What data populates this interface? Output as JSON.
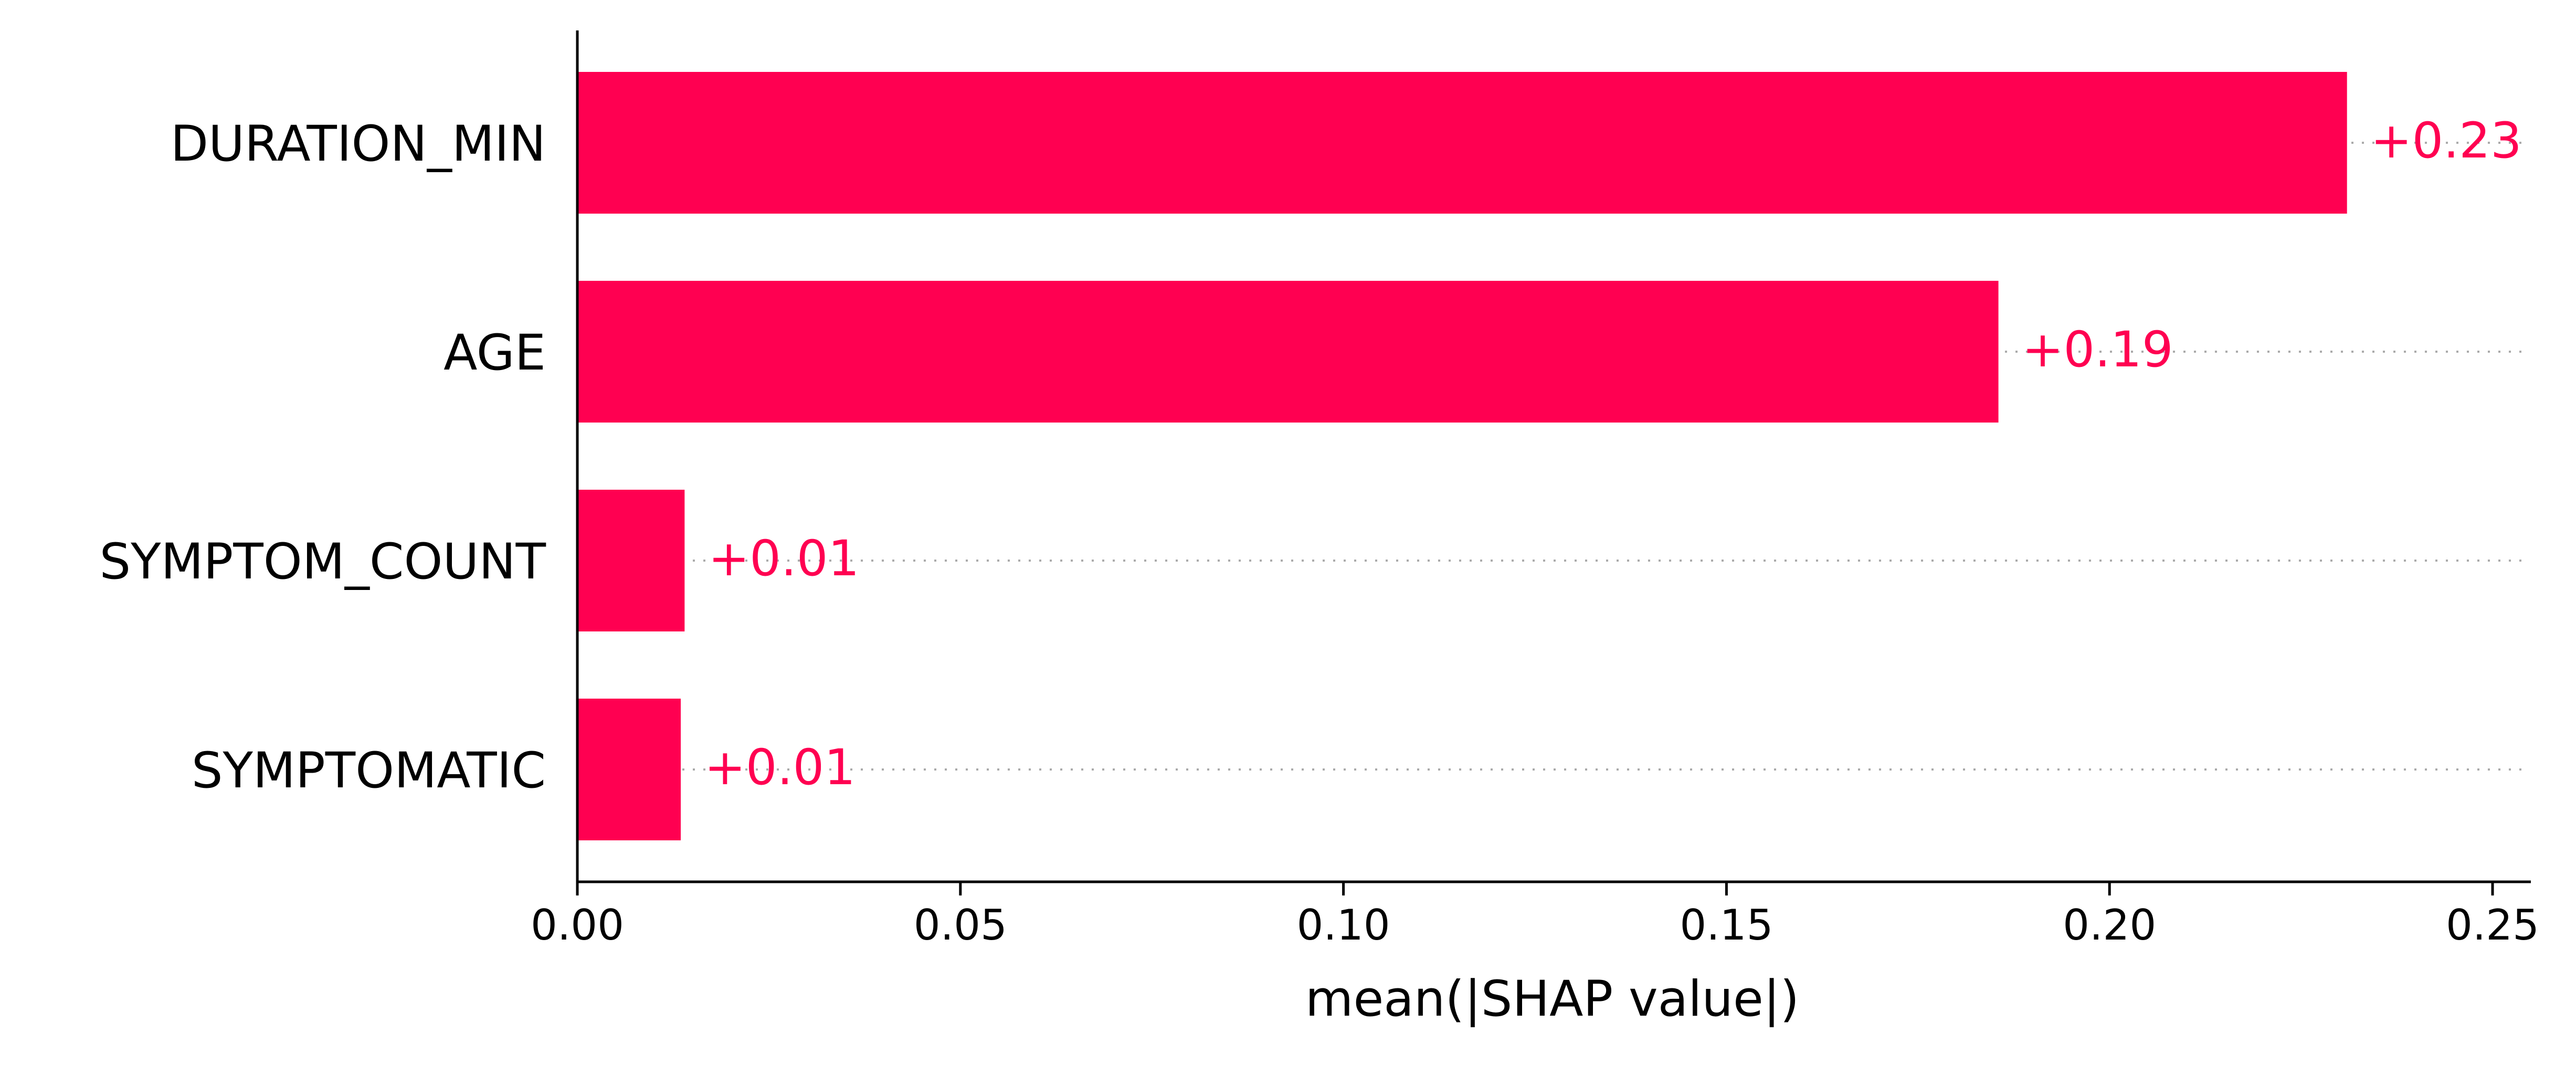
{
  "chart_data": {
    "type": "bar",
    "orientation": "horizontal",
    "categories": [
      "DURATION_MIN",
      "AGE",
      "SYMPTOM_COUNT",
      "SYMPTOMATIC"
    ],
    "values": [
      0.231,
      0.1855,
      0.014,
      0.0135
    ],
    "value_labels": [
      "+0.23",
      "+0.19",
      "+0.01",
      "+0.01"
    ],
    "xlabel": "mean(|SHAP value|)",
    "ylabel": "",
    "xlim": [
      0,
      0.255
    ],
    "xticks": [
      0.0,
      0.05,
      0.1,
      0.15,
      0.2,
      0.25
    ],
    "xtick_labels": [
      "0.00",
      "0.05",
      "0.10",
      "0.15",
      "0.20",
      "0.25"
    ],
    "grid": "dotted guide line per bar",
    "legend": "none",
    "bar_color": "#ff0051",
    "guide_color": "#aaaaaa",
    "axis_color": "#000000"
  }
}
